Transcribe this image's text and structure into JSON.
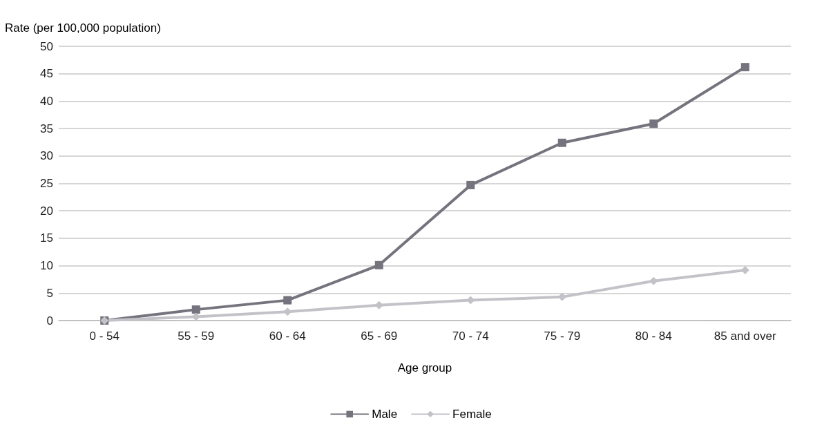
{
  "chart_data": {
    "type": "line",
    "xlabel": "Age group",
    "ylabel": "Rate (per 100,000 population)",
    "categories": [
      "0 - 54",
      "55 - 59",
      "60 - 64",
      "65 - 69",
      "70 - 74",
      "75 - 79",
      "80 - 84",
      "85 and over"
    ],
    "series": [
      {
        "name": "Male",
        "color": "#75737d",
        "marker": "square",
        "values": [
          0,
          2.0,
          3.7,
          10.1,
          24.7,
          32.4,
          35.9,
          46.2
        ]
      },
      {
        "name": "Female",
        "color": "#c3c2c8",
        "marker": "diamond",
        "values": [
          0,
          0.7,
          1.6,
          2.8,
          3.7,
          4.3,
          7.2,
          9.2
        ]
      }
    ],
    "ylim": [
      0,
      50
    ],
    "yticks": [
      0,
      5,
      10,
      15,
      20,
      25,
      30,
      35,
      40,
      45,
      50
    ],
    "grid": "y",
    "legend": "bottom",
    "line_style": "solid"
  }
}
